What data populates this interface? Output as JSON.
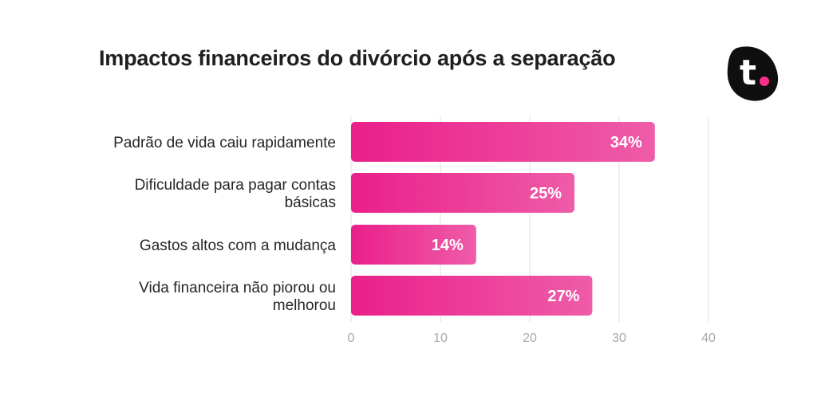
{
  "chart_data": {
    "type": "bar",
    "orientation": "horizontal",
    "title": "Impactos financeiros do divórcio após a separação",
    "categories": [
      [
        "Padrão de vida caiu rapidamente"
      ],
      [
        "Dificuldade para pagar contas",
        "básicas"
      ],
      [
        "Gastos altos com a mudança"
      ],
      [
        "Vida financeira não piorou ou",
        "melhorou"
      ]
    ],
    "values": [
      34,
      25,
      14,
      27
    ],
    "value_labels": [
      "34%",
      "25%",
      "14%",
      "27%"
    ],
    "xlim": [
      0,
      40
    ],
    "xticks": [
      0,
      10,
      20,
      30,
      40
    ],
    "grid": true,
    "colors": {
      "bar_start": "#ea1f8a",
      "bar_end": "#ef5ca8",
      "text": "#262626"
    }
  },
  "logo": {
    "icon": "t-logo-icon",
    "letter": "t",
    "bg": "#0f0f0f",
    "dot": "#ff2d8f"
  }
}
